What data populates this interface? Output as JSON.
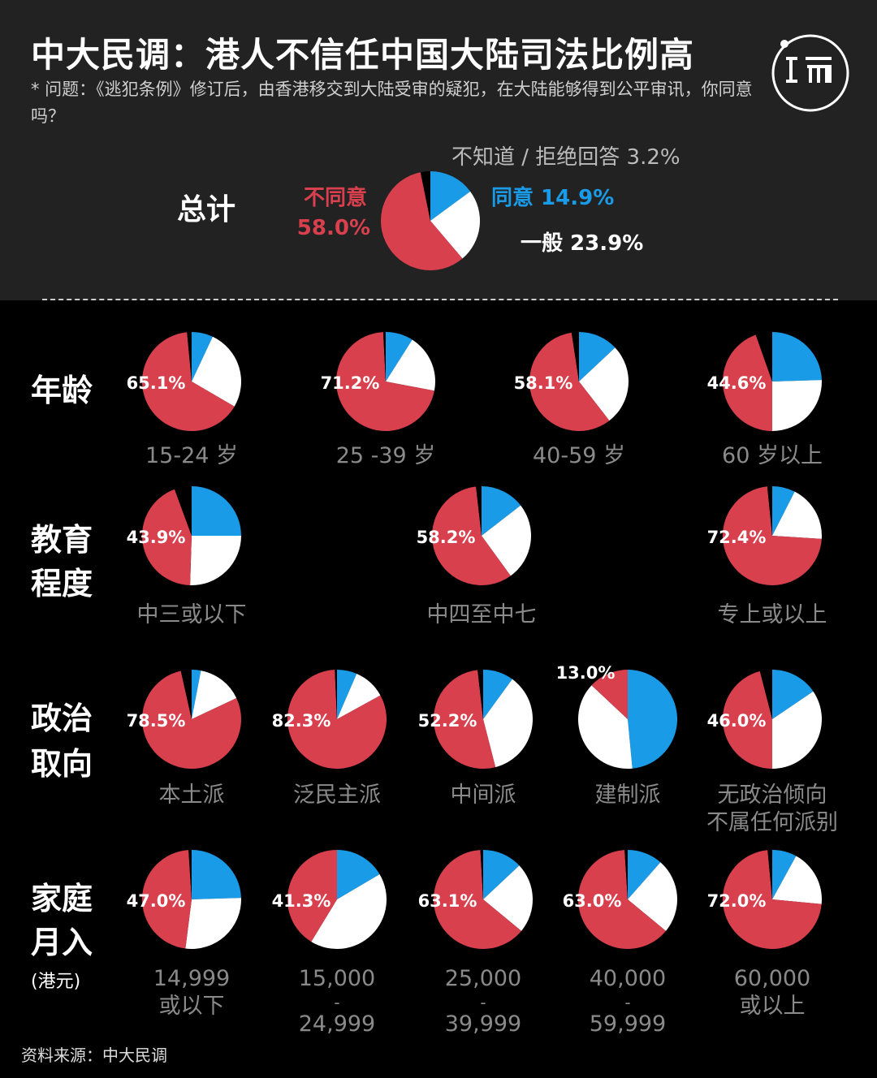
{
  "header": {
    "title": "中大民调：港人不信任中国大陆司法比例高",
    "subtitle": "* 问题：《逃犯条例》修订后，由香港移交到大陆受审的疑犯，在大陆能够得到公平审讯，你同意吗？",
    "logo_icon": "duan-logo-icon"
  },
  "source": "资料来源：中大民调",
  "colors": {
    "disagree": "#d9404e",
    "agree": "#1a9be8",
    "neutral": "#ffffff",
    "unknown": "#000000",
    "muted": "#8a8a8a"
  },
  "chart_data": {
    "type": "pie",
    "categories": [
      "不同意",
      "同意",
      "一般",
      "不知道 / 拒绝回答"
    ],
    "total": {
      "label": "总计",
      "slices": [
        {
          "name": "不同意",
          "value": 58.0,
          "label": "不同意 58.0%"
        },
        {
          "name": "同意",
          "value": 14.9,
          "label": "同意 14.9%"
        },
        {
          "name": "一般",
          "value": 23.9,
          "label": "一般 23.9%"
        },
        {
          "name": "不知道 / 拒绝回答",
          "value": 3.2,
          "label": "不知道 / 拒绝回答 3.2%"
        }
      ]
    },
    "groups": [
      {
        "label": "年龄",
        "pies": [
          {
            "category": "15-24 岁",
            "disagree": 65.1,
            "agree": 7.0,
            "neutral": 26.4,
            "unknown": 1.5,
            "label": "65.1%"
          },
          {
            "category": "25 -39 岁",
            "disagree": 71.2,
            "agree": 9.0,
            "neutral": 19.0,
            "unknown": 0.8,
            "label": "71.2%"
          },
          {
            "category": "40-59 岁",
            "disagree": 58.1,
            "agree": 13.0,
            "neutral": 26.5,
            "unknown": 2.4,
            "label": "58.1%"
          },
          {
            "category": "60 岁以上",
            "disagree": 44.6,
            "agree": 24.5,
            "neutral": 25.5,
            "unknown": 5.4,
            "label": "44.6%"
          }
        ]
      },
      {
        "label": "教育程度",
        "pies": [
          {
            "category": "中三或以下",
            "disagree": 43.9,
            "agree": 25.0,
            "neutral": 25.5,
            "unknown": 5.6,
            "label": "43.9%"
          },
          {
            "category": "中四至中七",
            "disagree": 58.2,
            "agree": 14.5,
            "neutral": 25.5,
            "unknown": 1.8,
            "label": "58.2%"
          },
          {
            "category": "专上或以上",
            "disagree": 72.4,
            "agree": 7.5,
            "neutral": 18.5,
            "unknown": 1.6,
            "label": "72.4%"
          }
        ]
      },
      {
        "label": "政治取向",
        "pies": [
          {
            "category": "本土派",
            "disagree": 78.5,
            "agree": 3.0,
            "neutral": 15.0,
            "unknown": 3.5,
            "label": "78.5%"
          },
          {
            "category": "泛民主派",
            "disagree": 82.3,
            "agree": 6.5,
            "neutral": 10.5,
            "unknown": 0.7,
            "label": "82.3%"
          },
          {
            "category": "中间派",
            "disagree": 52.2,
            "agree": 10.0,
            "neutral": 36.0,
            "unknown": 1.8,
            "label": "52.2%"
          },
          {
            "category": "建制派",
            "disagree": 13.0,
            "agree": 48.5,
            "neutral": 38.5,
            "unknown": 0.0,
            "label": "13.0%"
          },
          {
            "category": "无政治倾向\n不属任何派别",
            "disagree": 46.0,
            "agree": 15.5,
            "neutral": 34.5,
            "unknown": 4.0,
            "label": "46.0%"
          }
        ]
      },
      {
        "label": "家庭月入",
        "sublabel": "(港元)",
        "pies": [
          {
            "category": "14,999\n或以下",
            "disagree": 47.0,
            "agree": 24.5,
            "neutral": 27.5,
            "unknown": 1.0,
            "label": "47.0%"
          },
          {
            "category": "15,000\n-\n24,999",
            "disagree": 41.3,
            "agree": 16.5,
            "neutral": 42.2,
            "unknown": 0.0,
            "label": "41.3%"
          },
          {
            "category": "25,000\n-\n39,999",
            "disagree": 63.1,
            "agree": 13.0,
            "neutral": 23.0,
            "unknown": 0.9,
            "label": "63.1%"
          },
          {
            "category": "40,000\n-\n59,999",
            "disagree": 63.0,
            "agree": 11.5,
            "neutral": 24.5,
            "unknown": 1.0,
            "label": "63.0%"
          },
          {
            "category": "60,000\n或以上",
            "disagree": 72.0,
            "agree": 8.0,
            "neutral": 18.5,
            "unknown": 1.5,
            "label": "72.0%"
          }
        ]
      }
    ]
  }
}
